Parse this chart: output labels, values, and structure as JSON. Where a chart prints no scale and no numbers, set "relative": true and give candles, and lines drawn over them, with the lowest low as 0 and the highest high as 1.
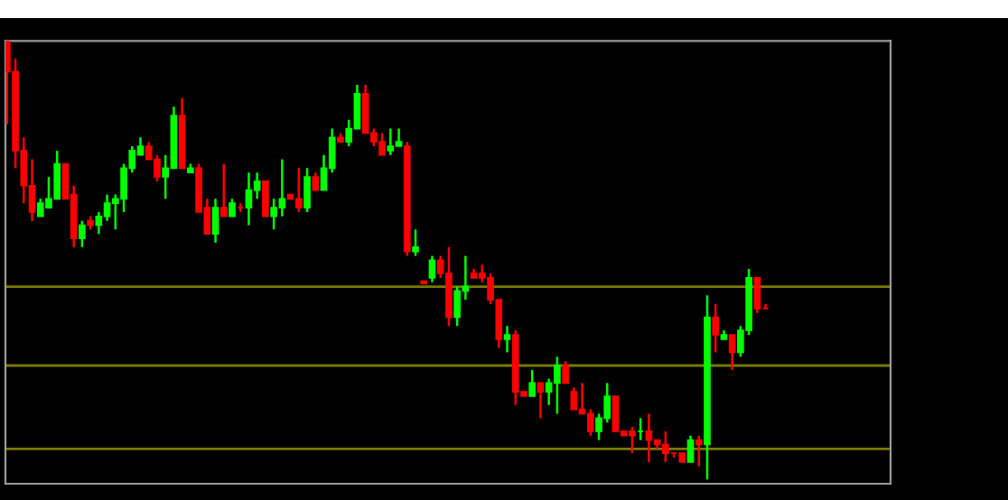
{
  "chart_data": {
    "type": "candlestick",
    "relative": true,
    "categories": [
      null,
      null,
      null,
      null,
      null,
      null,
      null,
      null,
      null,
      null,
      null,
      null,
      null,
      null,
      null,
      null,
      null,
      null,
      null,
      null,
      null,
      null,
      null,
      null,
      null,
      null,
      null,
      null,
      null,
      null,
      null,
      null,
      null,
      null,
      null,
      null,
      null,
      null,
      null,
      null,
      null,
      null,
      null,
      null,
      null,
      null,
      null,
      null,
      null,
      null,
      null,
      null,
      null,
      null,
      null,
      null,
      null,
      null,
      null,
      null,
      null,
      null,
      null,
      null,
      null,
      null,
      null,
      null,
      null,
      null,
      null,
      null,
      null,
      null,
      null,
      null,
      null,
      null,
      null,
      null,
      null,
      null,
      null,
      null,
      null,
      null,
      null,
      null,
      null,
      null,
      null,
      null
    ],
    "ohlc": [
      [
        1.0,
        1.0,
        0.81,
        0.93
      ],
      [
        0.93,
        0.96,
        0.71,
        0.75
      ],
      [
        0.75,
        0.78,
        0.63,
        0.67
      ],
      [
        0.67,
        0.73,
        0.59,
        0.61
      ],
      [
        0.6,
        0.64,
        0.6,
        0.63
      ],
      [
        0.62,
        0.69,
        0.62,
        0.64
      ],
      [
        0.64,
        0.75,
        0.64,
        0.72
      ],
      [
        0.72,
        0.72,
        0.64,
        0.64
      ],
      [
        0.65,
        0.67,
        0.53,
        0.55
      ],
      [
        0.55,
        0.59,
        0.53,
        0.58
      ],
      [
        0.59,
        0.6,
        0.57,
        0.58
      ],
      [
        0.58,
        0.61,
        0.56,
        0.6
      ],
      [
        0.6,
        0.65,
        0.59,
        0.63
      ],
      [
        0.63,
        0.65,
        0.57,
        0.64
      ],
      [
        0.64,
        0.72,
        0.61,
        0.71
      ],
      [
        0.71,
        0.76,
        0.7,
        0.75
      ],
      [
        0.74,
        0.78,
        0.74,
        0.76
      ],
      [
        0.76,
        0.77,
        0.73,
        0.73
      ],
      [
        0.73,
        0.74,
        0.68,
        0.69
      ],
      [
        0.69,
        0.74,
        0.64,
        0.71
      ],
      [
        0.71,
        0.85,
        0.71,
        0.83
      ],
      [
        0.83,
        0.87,
        0.71,
        0.71
      ],
      [
        0.7,
        0.72,
        0.7,
        0.71
      ],
      [
        0.71,
        0.72,
        0.61,
        0.61
      ],
      [
        0.62,
        0.64,
        0.56,
        0.56
      ],
      [
        0.56,
        0.64,
        0.54,
        0.62
      ],
      [
        0.62,
        0.72,
        0.6,
        0.6
      ],
      [
        0.6,
        0.64,
        0.6,
        0.63
      ],
      [
        0.62,
        0.63,
        0.61,
        0.62
      ],
      [
        0.62,
        0.7,
        0.58,
        0.66
      ],
      [
        0.66,
        0.7,
        0.64,
        0.68
      ],
      [
        0.68,
        0.68,
        0.6,
        0.6
      ],
      [
        0.6,
        0.64,
        0.57,
        0.62
      ],
      [
        0.62,
        0.73,
        0.6,
        0.64
      ],
      [
        0.65,
        0.65,
        0.64,
        0.64
      ],
      [
        0.64,
        0.71,
        0.61,
        0.62
      ],
      [
        0.62,
        0.71,
        0.61,
        0.69
      ],
      [
        0.69,
        0.7,
        0.66,
        0.66
      ],
      [
        0.66,
        0.74,
        0.66,
        0.71
      ],
      [
        0.71,
        0.8,
        0.7,
        0.78
      ],
      [
        0.78,
        0.79,
        0.77,
        0.77
      ],
      [
        0.77,
        0.82,
        0.76,
        0.8
      ],
      [
        0.8,
        0.9,
        0.8,
        0.88
      ],
      [
        0.88,
        0.9,
        0.79,
        0.79
      ],
      [
        0.79,
        0.8,
        0.76,
        0.77
      ],
      [
        0.77,
        0.79,
        0.74,
        0.74
      ],
      [
        0.75,
        0.8,
        0.74,
        0.76
      ],
      [
        0.76,
        0.8,
        0.76,
        0.77
      ],
      [
        0.76,
        0.77,
        0.51,
        0.52
      ],
      [
        0.52,
        0.57,
        0.51,
        0.53
      ],
      [
        0.452,
        0.454,
        0.446,
        0.447
      ],
      [
        0.46,
        0.51,
        0.45,
        0.5
      ],
      [
        0.5,
        0.51,
        0.46,
        0.47
      ],
      [
        0.47,
        0.53,
        0.35,
        0.37
      ],
      [
        0.37,
        0.44,
        0.35,
        0.43
      ],
      [
        0.43,
        0.51,
        0.41,
        0.44
      ],
      [
        0.47,
        0.48,
        0.46,
        0.46
      ],
      [
        0.47,
        0.49,
        0.45,
        0.46
      ],
      [
        0.46,
        0.47,
        0.4,
        0.41
      ],
      [
        0.41,
        0.41,
        0.3,
        0.32
      ],
      [
        0.32,
        0.35,
        0.29,
        0.33
      ],
      [
        0.33,
        0.34,
        0.17,
        0.2
      ],
      [
        0.2,
        0.2,
        0.19,
        0.19
      ],
      [
        0.19,
        0.25,
        0.19,
        0.22
      ],
      [
        0.22,
        0.22,
        0.14,
        0.2
      ],
      [
        0.2,
        0.23,
        0.17,
        0.22
      ],
      [
        0.22,
        0.28,
        0.15,
        0.26
      ],
      [
        0.26,
        0.27,
        0.22,
        0.22
      ],
      [
        0.2,
        0.21,
        0.16,
        0.16
      ],
      [
        0.16,
        0.22,
        0.15,
        0.15
      ],
      [
        0.15,
        0.16,
        0.1,
        0.11
      ],
      [
        0.11,
        0.15,
        0.09,
        0.14
      ],
      [
        0.14,
        0.22,
        0.13,
        0.19
      ],
      [
        0.19,
        0.19,
        0.11,
        0.11
      ],
      [
        0.11,
        0.11,
        0.1,
        0.1
      ],
      [
        0.11,
        0.12,
        0.06,
        0.1
      ],
      [
        0.11,
        0.14,
        0.09,
        0.11
      ],
      [
        0.11,
        0.15,
        0.04,
        0.09
      ],
      [
        0.09,
        0.09,
        0.07,
        0.08
      ],
      [
        0.08,
        0.11,
        0.04,
        0.06
      ],
      [
        0.06,
        0.06,
        0.05,
        0.06
      ],
      [
        0.06,
        0.06,
        0.04,
        0.04
      ],
      [
        0.04,
        0.1,
        0.04,
        0.09
      ],
      [
        0.09,
        0.1,
        0.03,
        0.08
      ],
      [
        0.08,
        0.42,
        0.0,
        0.37
      ],
      [
        0.37,
        0.4,
        0.29,
        0.33
      ],
      [
        0.32,
        0.34,
        0.32,
        0.33
      ],
      [
        0.33,
        0.33,
        0.25,
        0.29
      ],
      [
        0.29,
        0.35,
        0.28,
        0.34
      ],
      [
        0.34,
        0.48,
        0.33,
        0.46
      ],
      [
        0.46,
        0.46,
        0.38,
        0.39
      ],
      [
        0.39,
        0.4,
        0.39,
        0.39
      ]
    ],
    "colors": [
      "#ff0000",
      "#ff0000",
      "#ff0000",
      "#ff0000",
      "#00ff00",
      "#00ff00",
      "#00ff00",
      "#ff0000",
      "#ff0000",
      "#00ff00",
      "#ff0000",
      "#00ff00",
      "#00ff00",
      "#00ff00",
      "#00ff00",
      "#00ff00",
      "#00ff00",
      "#ff0000",
      "#ff0000",
      "#00ff00",
      "#00ff00",
      "#ff0000",
      "#00ff00",
      "#ff0000",
      "#ff0000",
      "#00ff00",
      "#ff0000",
      "#00ff00",
      "#ff0000",
      "#00ff00",
      "#00ff00",
      "#ff0000",
      "#00ff00",
      "#00ff00",
      "#ff0000",
      "#ff0000",
      "#00ff00",
      "#ff0000",
      "#00ff00",
      "#00ff00",
      "#ff0000",
      "#00ff00",
      "#00ff00",
      "#ff0000",
      "#ff0000",
      "#ff0000",
      "#00ff00",
      "#00ff00",
      "#ff0000",
      "#00ff00",
      "#ff0000",
      "#00ff00",
      "#ff0000",
      "#ff0000",
      "#00ff00",
      "#00ff00",
      "#ff0000",
      "#ff0000",
      "#ff0000",
      "#ff0000",
      "#00ff00",
      "#ff0000",
      "#ff0000",
      "#00ff00",
      "#ff0000",
      "#00ff00",
      "#00ff00",
      "#ff0000",
      "#ff0000",
      "#ff0000",
      "#ff0000",
      "#00ff00",
      "#00ff00",
      "#ff0000",
      "#ff0000",
      "#ff0000",
      "#00ff00",
      "#ff0000",
      "#ff0000",
      "#ff0000",
      "#ff0000",
      "#ff0000",
      "#00ff00",
      "#ff0000",
      "#00ff00",
      "#ff0000",
      "#00ff00",
      "#ff0000",
      "#00ff00",
      "#00ff00",
      "#ff0000",
      "#ff0000"
    ],
    "ref_lines": [
      {
        "axis": "y",
        "value": 0.44,
        "color": "#7a7a00"
      },
      {
        "axis": "y",
        "value": 0.26,
        "color": "#7a7a00"
      },
      {
        "axis": "y",
        "value": 0.07,
        "color": "#7a7a00"
      }
    ]
  }
}
